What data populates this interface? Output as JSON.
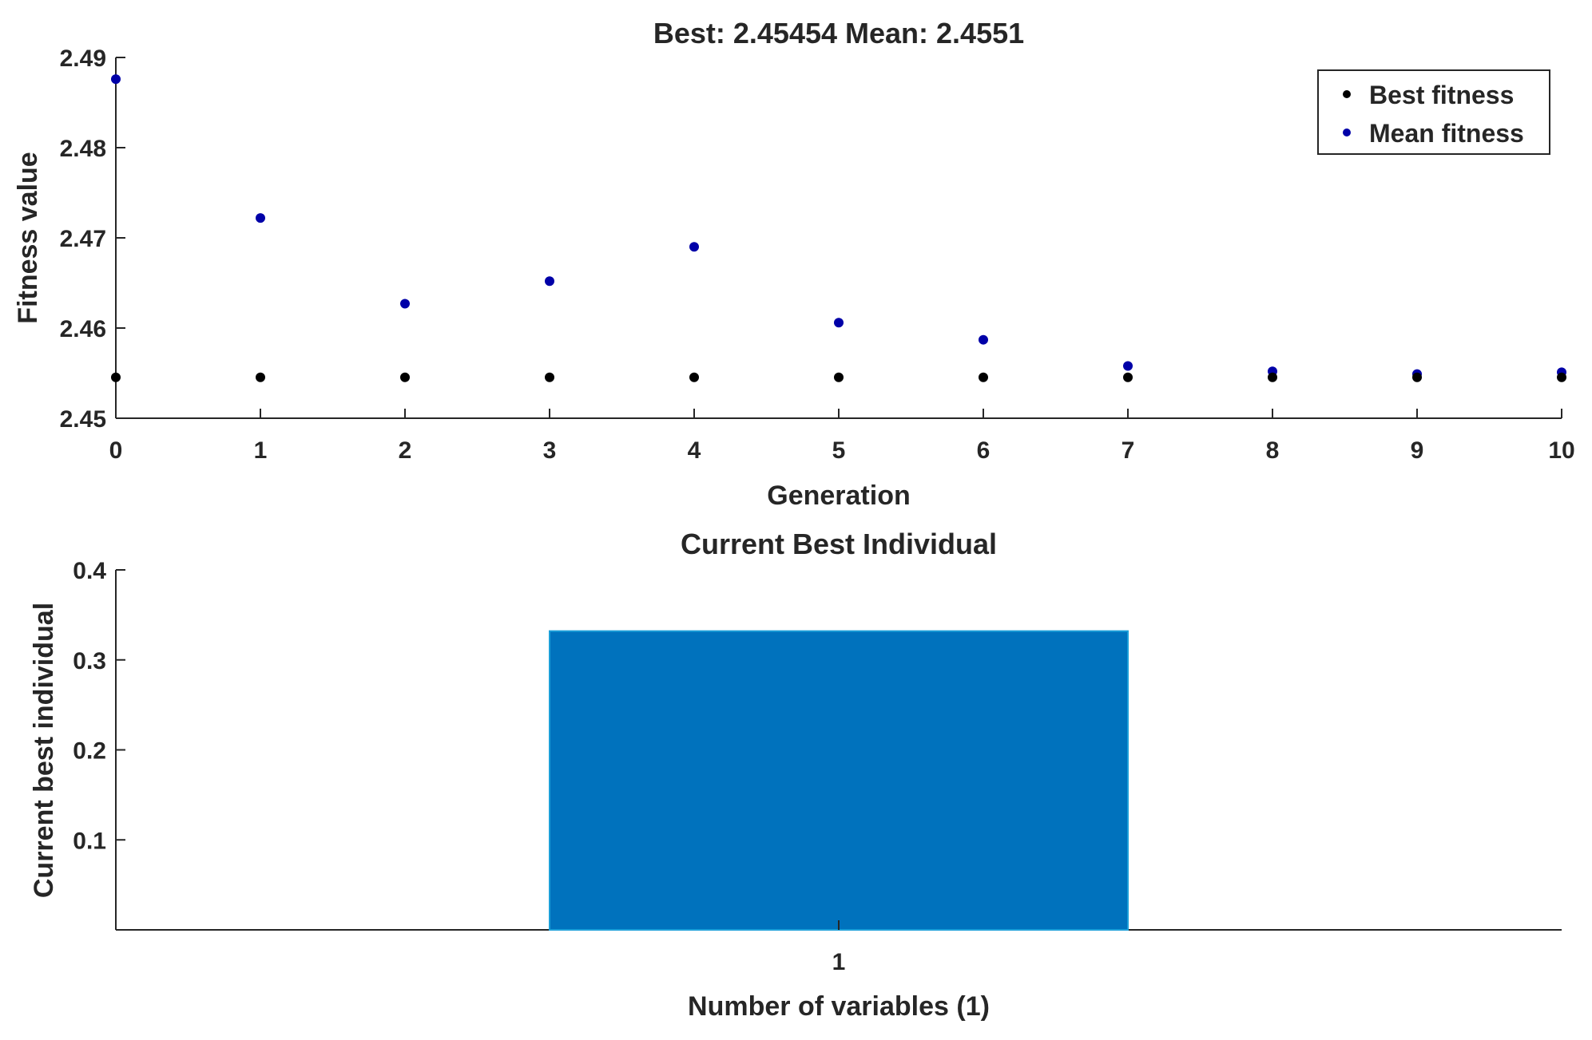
{
  "chart_data": [
    {
      "type": "scatter",
      "title": "Best: 2.45454 Mean: 2.4551",
      "xlabel": "Generation",
      "ylabel": "Fitness value",
      "xlim": [
        0,
        10
      ],
      "ylim": [
        2.45,
        2.49
      ],
      "x_ticks": [
        "0",
        "1",
        "2",
        "3",
        "4",
        "5",
        "6",
        "7",
        "8",
        "9",
        "10"
      ],
      "y_ticks": [
        "2.45",
        "2.46",
        "2.47",
        "2.48",
        "2.49"
      ],
      "legend_position": "top-right",
      "grid": false,
      "series": [
        {
          "name": "Best fitness",
          "color": "#000000",
          "x": [
            0,
            1,
            2,
            3,
            4,
            5,
            6,
            7,
            8,
            9,
            10
          ],
          "y": [
            2.45454,
            2.45454,
            2.45454,
            2.45454,
            2.45454,
            2.45454,
            2.45454,
            2.45454,
            2.45454,
            2.45454,
            2.45454
          ]
        },
        {
          "name": "Mean fitness",
          "color": "#0000a8",
          "x": [
            0,
            1,
            2,
            3,
            4,
            5,
            6,
            7,
            8,
            9,
            10
          ],
          "y": [
            2.4876,
            2.4722,
            2.4627,
            2.4652,
            2.469,
            2.4606,
            2.4587,
            2.4558,
            2.4552,
            2.4549,
            2.4551
          ]
        }
      ]
    },
    {
      "type": "bar",
      "title": "Current Best Individual",
      "xlabel": "Number of variables (1)",
      "ylabel": "Current best individual",
      "categories": [
        "1"
      ],
      "values": [
        0.332
      ],
      "ylim": [
        0,
        0.4
      ],
      "y_ticks": [
        "0.1",
        "0.2",
        "0.3",
        "0.4"
      ],
      "bar_color": "#0072bd",
      "grid": false
    }
  ]
}
